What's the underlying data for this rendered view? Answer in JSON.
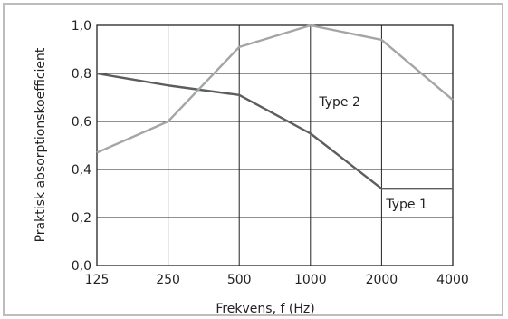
{
  "chart_data": {
    "type": "line",
    "title": "",
    "xlabel": "Frekvens, f (Hz)",
    "ylabel": "Praktisk absorptionskoefficient",
    "categories": [
      "125",
      "250",
      "500",
      "1000",
      "2000",
      "4000"
    ],
    "x_scale": "log2 (octave bands)",
    "yticks": [
      "0,0",
      "0,2",
      "0,4",
      "0,6",
      "0,8",
      "1,0"
    ],
    "ylim": [
      0.0,
      1.0
    ],
    "grid": true,
    "series": [
      {
        "name": "Type 1",
        "values": [
          0.8,
          0.75,
          0.71,
          0.55,
          0.32,
          0.32
        ],
        "color": "#5a5e5c"
      },
      {
        "name": "Type 2",
        "values": [
          0.47,
          0.6,
          0.91,
          1.0,
          0.94,
          0.69
        ],
        "color": "#a3a7a4"
      }
    ]
  }
}
